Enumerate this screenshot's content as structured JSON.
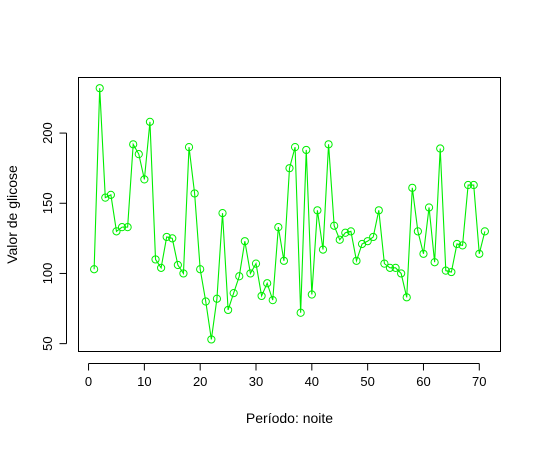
{
  "chart_data": {
    "type": "line",
    "title": "",
    "xlabel": "Período: noite",
    "ylabel": "Valor de glicose",
    "xlim": [
      -1.8,
      73.8
    ],
    "ylim": [
      44.4,
      239.6
    ],
    "x_ticks": [
      0,
      10,
      20,
      30,
      40,
      50,
      60,
      70
    ],
    "x_tick_labels": [
      "0",
      "10",
      "20",
      "30",
      "40",
      "50",
      "60",
      "70"
    ],
    "y_ticks": [
      50,
      100,
      150,
      200
    ],
    "y_tick_labels": [
      "50",
      "100",
      "150",
      "200"
    ],
    "grid": false,
    "legend": "none",
    "series": [
      {
        "color": "#00ee00",
        "marker": "open-circle",
        "x": [
          1,
          2,
          3,
          4,
          5,
          6,
          7,
          8,
          9,
          10,
          11,
          12,
          13,
          14,
          15,
          16,
          17,
          18,
          19,
          20,
          21,
          22,
          23,
          24,
          25,
          26,
          27,
          28,
          29,
          30,
          31,
          32,
          33,
          34,
          35,
          36,
          37,
          38,
          39,
          40,
          41,
          42,
          43,
          44,
          45,
          46,
          47,
          48,
          49,
          50,
          51,
          52,
          53,
          54,
          55,
          56,
          57,
          58,
          59,
          60,
          61,
          62,
          63,
          64,
          65,
          66,
          67,
          68,
          69,
          70,
          71
        ],
        "values": [
          103,
          232,
          154,
          156,
          130,
          133,
          133,
          192,
          185,
          167,
          208,
          110,
          104,
          126,
          125,
          106,
          100,
          190,
          157,
          103,
          80,
          53,
          82,
          143,
          74,
          86,
          98,
          123,
          100,
          107,
          84,
          93,
          81,
          133,
          109,
          175,
          190,
          72,
          188,
          85,
          145,
          117,
          192,
          134,
          124,
          129,
          130,
          109,
          121,
          123,
          126,
          145,
          107,
          104,
          104,
          100,
          83,
          161,
          130,
          114,
          147,
          108,
          189,
          102,
          101,
          121,
          120,
          163,
          163,
          114,
          130
        ]
      }
    ]
  }
}
